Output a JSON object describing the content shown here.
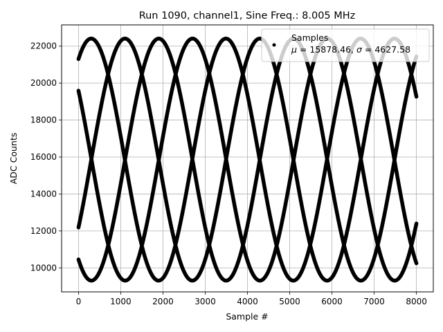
{
  "chart_data": {
    "type": "scatter",
    "title": "Run 1090, channel1, Sine Freq.: 8.005 MHz",
    "xlabel": "Sample #",
    "ylabel": "ADC Counts",
    "xlim": [
      -400,
      8400
    ],
    "ylim": [
      8700,
      23150
    ],
    "xticks": [
      0,
      1000,
      2000,
      3000,
      4000,
      5000,
      6000,
      7000,
      8000
    ],
    "yticks": [
      10000,
      12000,
      14000,
      16000,
      18000,
      20000,
      22000
    ],
    "grid": true,
    "legend_position": "top-right",
    "series": [
      {
        "name": "Samples",
        "stats": "$\\mu$ = 15878.46, $\\sigma$ = 4627.58",
        "color": "#000000",
        "marker": "dot",
        "model": "sine",
        "mean": 15860,
        "amplitude": 6550,
        "period_samples": 3190,
        "phase_offsets_samples": [
          300,
          1100,
          1900,
          2700
        ],
        "sample_range": [
          0,
          8000
        ]
      }
    ]
  }
}
